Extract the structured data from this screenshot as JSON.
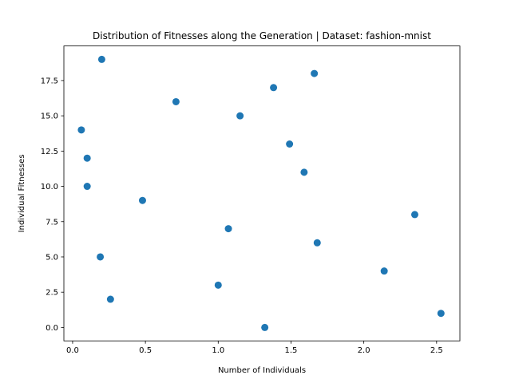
{
  "chart_data": {
    "type": "scatter",
    "title": "Distribution of Fitnesses along the Generation | Dataset: fashion-mnist",
    "xlabel": "Number of Individuals",
    "ylabel": "Individual Fitnesses",
    "xlim": [
      -0.06,
      2.66
    ],
    "ylim": [
      -0.95,
      19.95
    ],
    "xticks": [
      0.0,
      0.5,
      1.0,
      1.5,
      2.0,
      2.5
    ],
    "xtick_labels": [
      "0.0",
      "0.5",
      "1.0",
      "1.5",
      "2.0",
      "2.5"
    ],
    "yticks": [
      0.0,
      2.5,
      5.0,
      7.5,
      10.0,
      12.5,
      15.0,
      17.5
    ],
    "ytick_labels": [
      "0.0",
      "2.5",
      "5.0",
      "7.5",
      "10.0",
      "12.5",
      "15.0",
      "17.5"
    ],
    "grid": false,
    "legend": "none",
    "marker_color": "#1f77b4",
    "points": [
      {
        "x": 1.32,
        "y": 0
      },
      {
        "x": 2.53,
        "y": 1
      },
      {
        "x": 0.26,
        "y": 2
      },
      {
        "x": 1.0,
        "y": 3
      },
      {
        "x": 2.14,
        "y": 4
      },
      {
        "x": 0.19,
        "y": 5
      },
      {
        "x": 1.68,
        "y": 6
      },
      {
        "x": 1.07,
        "y": 7
      },
      {
        "x": 2.35,
        "y": 8
      },
      {
        "x": 0.48,
        "y": 9
      },
      {
        "x": 0.1,
        "y": 10
      },
      {
        "x": 1.59,
        "y": 11
      },
      {
        "x": 0.1,
        "y": 12
      },
      {
        "x": 1.49,
        "y": 13
      },
      {
        "x": 0.06,
        "y": 14
      },
      {
        "x": 1.15,
        "y": 15
      },
      {
        "x": 0.71,
        "y": 16
      },
      {
        "x": 1.38,
        "y": 17
      },
      {
        "x": 1.66,
        "y": 18
      },
      {
        "x": 0.2,
        "y": 19
      }
    ]
  }
}
